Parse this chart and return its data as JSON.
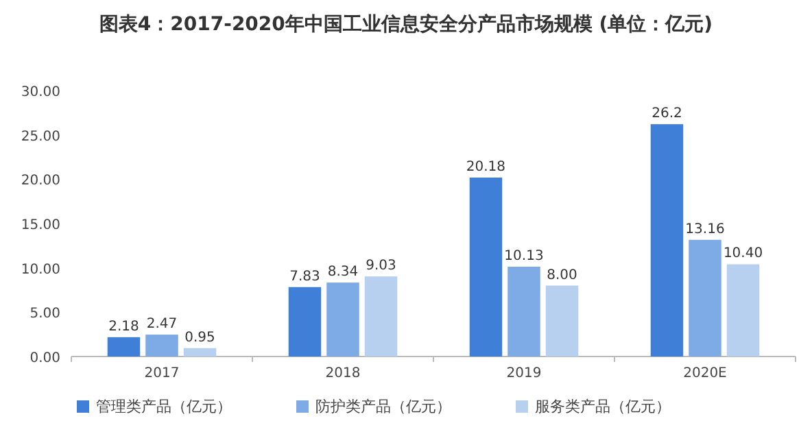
{
  "chart_data": {
    "type": "bar",
    "title": "图表4：2017-2020年中国工业信息安全分产品市场规模 (单位：亿元)",
    "categories": [
      "2017",
      "2018",
      "2019",
      "2020E"
    ],
    "series": [
      {
        "name": "管理类产品（亿元）",
        "color": "#3f7fd8",
        "values": [
          2.18,
          7.83,
          20.18,
          26.2
        ],
        "value_labels": [
          "2.18",
          "7.83",
          "20.18",
          "26.2"
        ]
      },
      {
        "name": "防护类产品（亿元）",
        "color": "#7eaae6",
        "values": [
          2.47,
          8.34,
          10.13,
          13.16
        ],
        "value_labels": [
          "2.47",
          "8.34",
          "10.13",
          "13.16"
        ]
      },
      {
        "name": "服务类产品（亿元）",
        "color": "#b8d0f0",
        "values": [
          0.95,
          9.03,
          8.0,
          10.4
        ],
        "value_labels": [
          "0.95",
          "9.03",
          "8.00",
          "10.40"
        ]
      }
    ],
    "ylim": [
      0,
      30
    ],
    "yticks": [
      {
        "value": 0,
        "label": "0.00"
      },
      {
        "value": 5,
        "label": "5.00"
      },
      {
        "value": 10,
        "label": "10.00"
      },
      {
        "value": 15,
        "label": "15.00"
      },
      {
        "value": 20,
        "label": "20.00"
      },
      {
        "value": 25,
        "label": "25.00"
      },
      {
        "value": 30,
        "label": "30.00"
      }
    ],
    "grid": false,
    "legend": "bottom"
  }
}
